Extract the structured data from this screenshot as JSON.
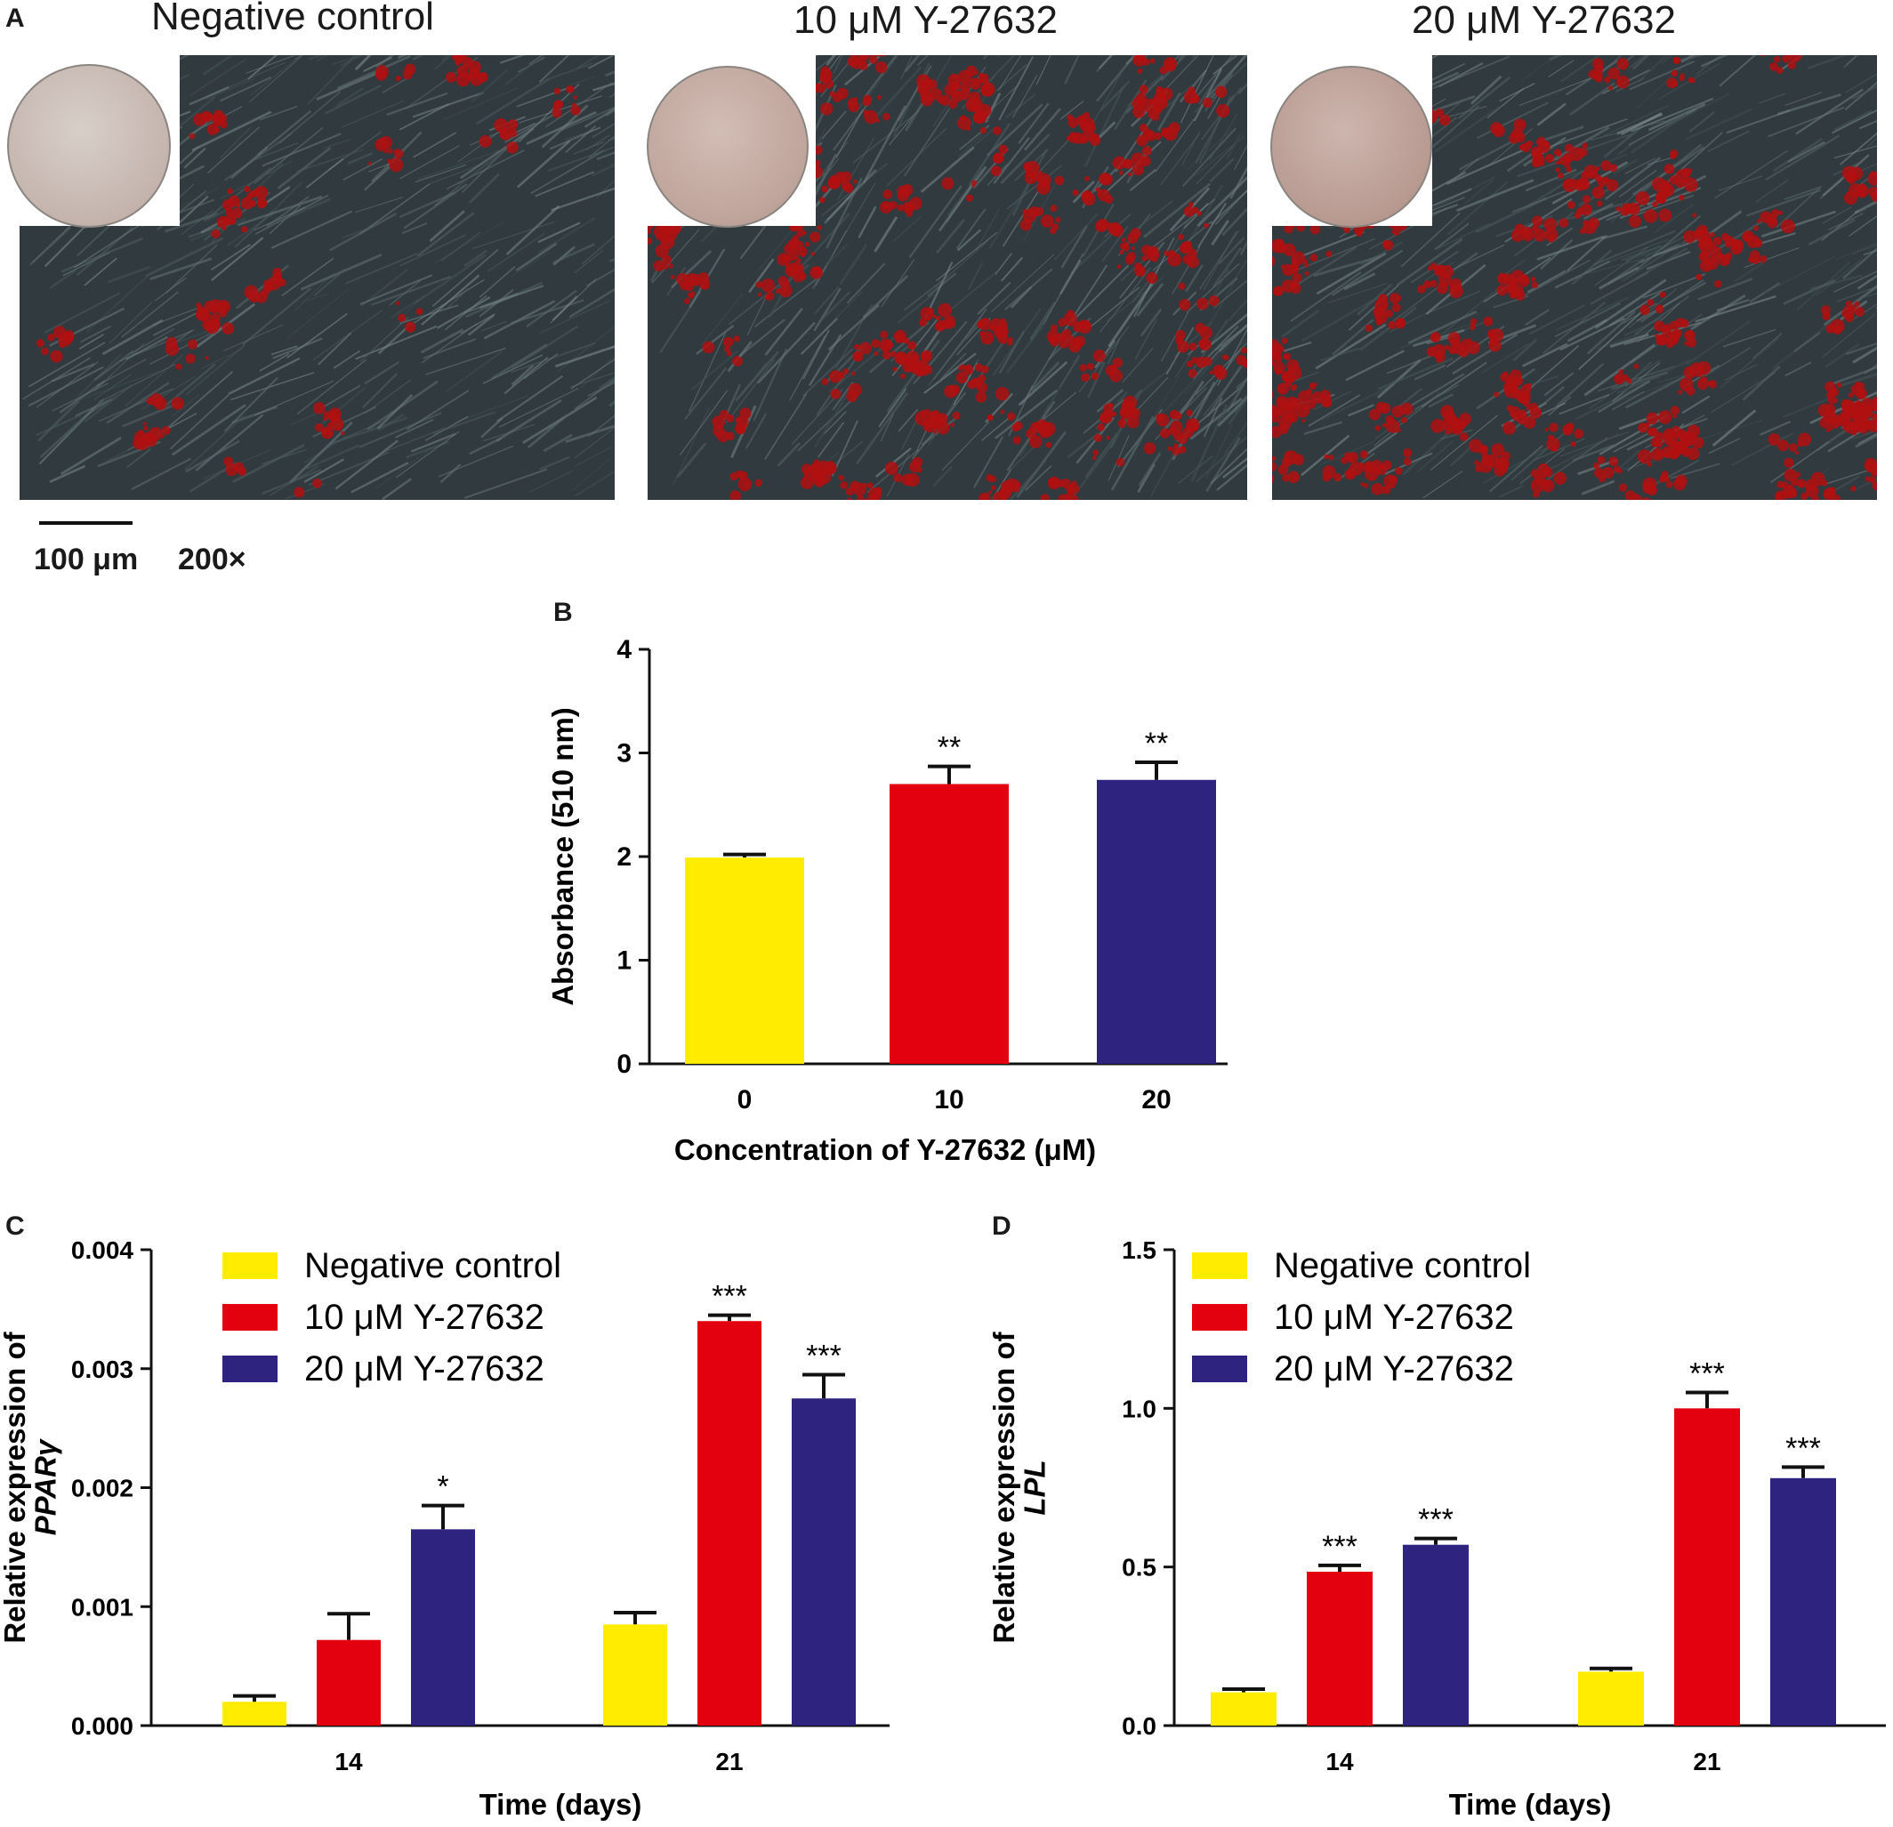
{
  "panels": {
    "A": {
      "letter": "A",
      "images": [
        {
          "title": "Negative control"
        },
        {
          "title": "10 μM Y-27632"
        },
        {
          "title": "20 μM Y-27632"
        }
      ],
      "scale_label": "100 μm",
      "magnification": "200×"
    },
    "B": {
      "letter": "B"
    },
    "C": {
      "letter": "C"
    },
    "D": {
      "letter": "D"
    }
  },
  "colors": {
    "negative": "#ffec00",
    "ten": "#e3000f",
    "twenty": "#2e2480",
    "lipid": "#b01010"
  },
  "chart_data": [
    {
      "id": "B",
      "type": "bar",
      "categories": [
        "0",
        "10",
        "20"
      ],
      "values": [
        1.99,
        2.7,
        2.74
      ],
      "errors": [
        0.03,
        0.17,
        0.17
      ],
      "significance": [
        "",
        "**",
        "**"
      ],
      "colors": [
        "#ffec00",
        "#e3000f",
        "#2e2480"
      ],
      "xlabel": "Concentration of Y-27632 (μM)",
      "ylabel": "Absorbance (510 nm)",
      "ylim": [
        0,
        4
      ],
      "yticks": [
        "0",
        "1",
        "2",
        "3",
        "4"
      ],
      "grid": false
    },
    {
      "id": "C",
      "type": "bar",
      "categories": [
        "14",
        "21"
      ],
      "series": [
        {
          "name": "Negative control",
          "values": [
            0.0002,
            0.00085
          ],
          "errors": [
            5e-05,
            0.0001
          ],
          "significance": [
            "",
            ""
          ],
          "color": "#ffec00"
        },
        {
          "name": "10 μM Y-27632",
          "values": [
            0.00072,
            0.0034
          ],
          "errors": [
            0.00022,
            5e-05
          ],
          "significance": [
            "",
            "***"
          ],
          "color": "#e3000f"
        },
        {
          "name": "20 μM Y-27632",
          "values": [
            0.00165,
            0.00275
          ],
          "errors": [
            0.0002,
            0.0002
          ],
          "significance": [
            "*",
            "***"
          ],
          "color": "#2e2480"
        }
      ],
      "xlabel": "Time (days)",
      "ylabel": "Relative expression of",
      "ylabel_gene": "PPARγ",
      "ylim": [
        0,
        0.004
      ],
      "yticks": [
        "0.000",
        "0.001",
        "0.002",
        "0.003",
        "0.004"
      ],
      "legend": "top-left",
      "grid": false
    },
    {
      "id": "D",
      "type": "bar",
      "categories": [
        "14",
        "21"
      ],
      "series": [
        {
          "name": "Negative control",
          "values": [
            0.105,
            0.17
          ],
          "errors": [
            0.01,
            0.01
          ],
          "significance": [
            "",
            ""
          ],
          "color": "#ffec00"
        },
        {
          "name": "10 μM Y-27632",
          "values": [
            0.485,
            1.0
          ],
          "errors": [
            0.02,
            0.05
          ],
          "significance": [
            "***",
            "***"
          ],
          "color": "#e3000f"
        },
        {
          "name": "20 μM Y-27632",
          "values": [
            0.57,
            0.78
          ],
          "errors": [
            0.02,
            0.035
          ],
          "significance": [
            "***",
            "***"
          ],
          "color": "#2e2480"
        }
      ],
      "xlabel": "Time (days)",
      "ylabel": "Relative expression of",
      "ylabel_gene": "LPL",
      "ylim": [
        0,
        1.5
      ],
      "yticks": [
        "0.0",
        "0.5",
        "1.0",
        "1.5"
      ],
      "legend": "top-left",
      "grid": false
    }
  ]
}
